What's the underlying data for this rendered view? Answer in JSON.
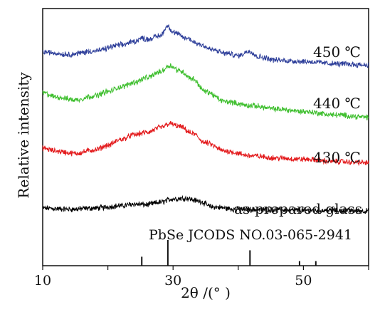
{
  "chart_data": {
    "type": "line",
    "title": "",
    "xlabel": "2θ /(° )",
    "ylabel": "Relative intensity",
    "xlim": [
      10,
      60
    ],
    "xticks": [
      10,
      30,
      50
    ],
    "y_axis_ticks": false,
    "grid": false,
    "legend": "labels placed at right end of each curve",
    "reference": {
      "label": "PbSe JCODS NO.03-065-2941",
      "peaks": [
        {
          "x": 25.2,
          "rel_intensity": 0.35
        },
        {
          "x": 29.2,
          "rel_intensity": 1.0
        },
        {
          "x": 41.8,
          "rel_intensity": 0.6
        },
        {
          "x": 49.4,
          "rel_intensity": 0.18
        },
        {
          "x": 51.9,
          "rel_intensity": 0.18
        }
      ]
    },
    "series": [
      {
        "name": "as-prepared glass",
        "color": "#000000",
        "x": [
          10,
          14,
          18,
          22,
          24,
          26,
          28,
          30,
          32,
          34,
          36,
          40,
          45,
          50,
          55,
          60
        ],
        "values": [
          0.12,
          0.1,
          0.12,
          0.16,
          0.19,
          0.18,
          0.22,
          0.28,
          0.29,
          0.24,
          0.14,
          0.1,
          0.09,
          0.08,
          0.08,
          0.07
        ]
      },
      {
        "name": "430 ℃",
        "color": "#e31a1c",
        "x": [
          10,
          12,
          15,
          18,
          20,
          22,
          24,
          26,
          28,
          29.5,
          31,
          33,
          35,
          38,
          42,
          46,
          50,
          55,
          60
        ],
        "values": [
          1.15,
          1.1,
          1.06,
          1.12,
          1.2,
          1.3,
          1.38,
          1.42,
          1.5,
          1.57,
          1.52,
          1.4,
          1.24,
          1.1,
          1.02,
          0.98,
          0.96,
          0.92,
          0.9
        ]
      },
      {
        "name": "440 ℃",
        "color": "#3fbf2f",
        "x": [
          10,
          12,
          15,
          18,
          20,
          22,
          24,
          26,
          28,
          29.5,
          31,
          33,
          35,
          38,
          42,
          46,
          50,
          55,
          60
        ],
        "values": [
          2.1,
          2.03,
          1.98,
          2.05,
          2.12,
          2.2,
          2.28,
          2.36,
          2.46,
          2.57,
          2.48,
          2.34,
          2.12,
          1.95,
          1.88,
          1.82,
          1.78,
          1.72,
          1.68
        ]
      },
      {
        "name": "450 ℃",
        "color": "#2e3f9a",
        "x": [
          10,
          14,
          18,
          22,
          24,
          25.2,
          26,
          28,
          29.2,
          30,
          32,
          34,
          36,
          38,
          40,
          41.8,
          43,
          46,
          50,
          55,
          60
        ],
        "values": [
          2.8,
          2.76,
          2.82,
          2.92,
          2.98,
          3.04,
          3.02,
          3.08,
          3.25,
          3.14,
          3.04,
          2.94,
          2.84,
          2.78,
          2.74,
          2.82,
          2.72,
          2.66,
          2.64,
          2.6,
          2.58
        ]
      }
    ]
  }
}
